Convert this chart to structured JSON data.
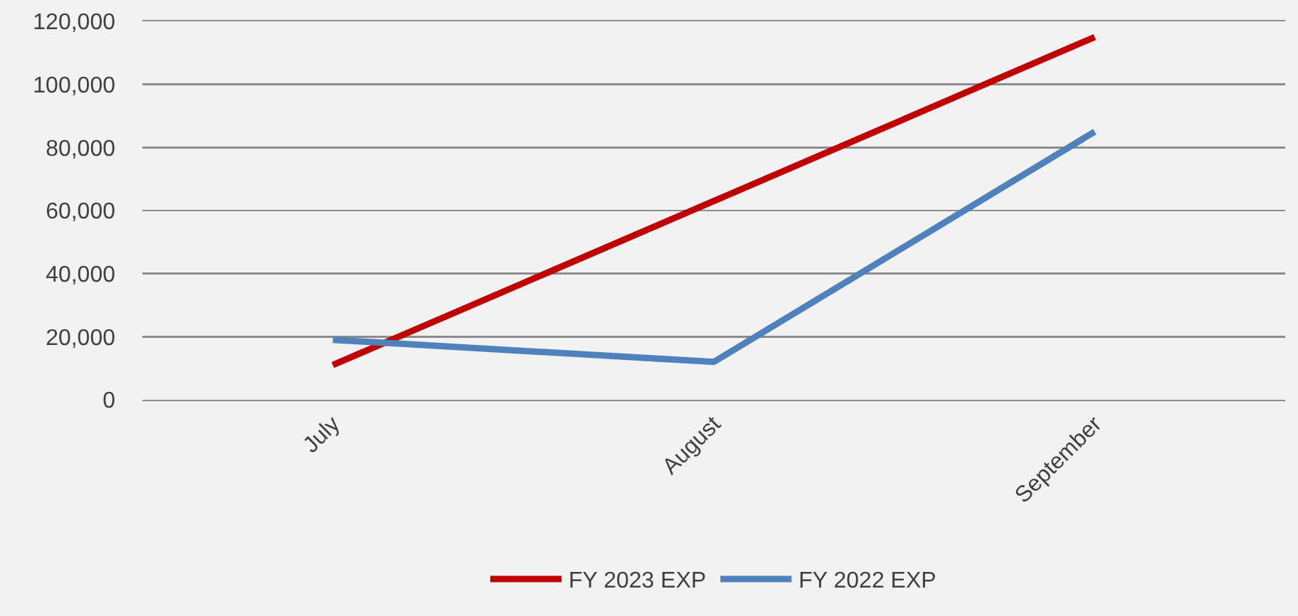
{
  "chart_data": {
    "type": "line",
    "categories": [
      "July",
      "August",
      "September"
    ],
    "series": [
      {
        "name": "FY 2023 EXP",
        "color": "#c00000",
        "values": [
          11000,
          63000,
          115000
        ]
      },
      {
        "name": "FY 2022 EXP",
        "color": "#4f81bd",
        "values": [
          19000,
          12000,
          85000
        ]
      }
    ],
    "ylim": [
      0,
      120000
    ],
    "yticks": [
      0,
      {
        "value": 20000,
        "label": "20,000"
      },
      {
        "value": 40000,
        "label": "40,000"
      },
      {
        "value": 60000,
        "label": "60,000"
      },
      {
        "value": 80000,
        "label": "80,000"
      },
      {
        "value": 100000,
        "label": "100,000"
      },
      {
        "value": 120000,
        "label": "120,000"
      }
    ],
    "grid": "y",
    "legend": "bottom",
    "marker": "none",
    "line_style": "solid"
  }
}
